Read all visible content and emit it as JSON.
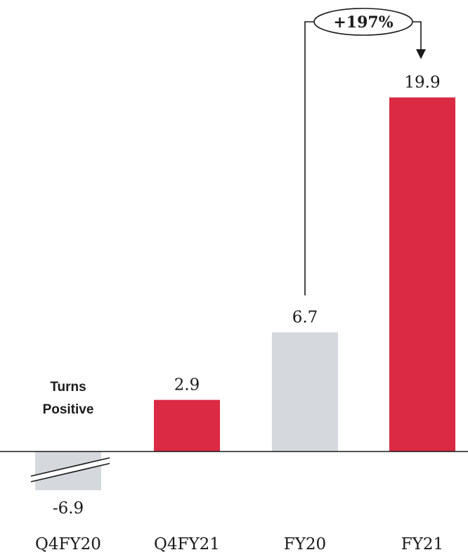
{
  "chart_data": {
    "type": "bar",
    "categories": [
      "Q4FY20",
      "Q4FY21",
      "FY20",
      "FY21"
    ],
    "values": [
      -6.9,
      2.9,
      6.7,
      19.9
    ],
    "value_labels": [
      "-6.9",
      "2.9",
      "6.7",
      "19.9"
    ],
    "bar_colors": [
      "#d5d9dd",
      "#da2a44",
      "#d5d9dd",
      "#da2a44"
    ],
    "axis_break_on": "Q4FY20",
    "annotations": {
      "turns_positive": [
        "Turns",
        "Positive"
      ],
      "growth": {
        "label": "+197%",
        "from": "FY20",
        "to": "FY21"
      }
    }
  }
}
